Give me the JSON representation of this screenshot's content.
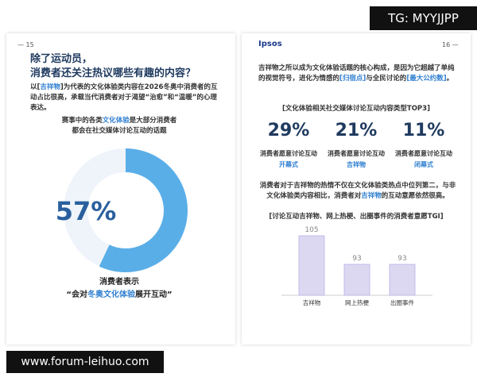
{
  "watermark_top": "TG: MYYJJPP",
  "watermark_bottom": "www.forum-leihuo.com",
  "left_page": {
    "page_number": "15",
    "title": [
      "除了运动员，",
      "消费者还关注热议哪些有趣的内容？"
    ],
    "intro": [
      "以[",
      "吉祥物",
      "]为代表的文化体验类内容在2026冬奥中消费者的互动占比很高，承载当代消费者对于渴望“治愈”和“温暖”的心理表达。"
    ],
    "donut": {
      "caption": [
        "赛事中的各类",
        "文化体验",
        "是大部分消费者",
        "都会在社交媒体讨论互动的话题"
      ],
      "value": 57,
      "value_label": "57%",
      "max": 100,
      "color": "#5aaee8",
      "track_color": "#eef4fa"
    },
    "statement": [
      "消费者表示",
      "“会对",
      "冬奥文化体验",
      "展开互动”"
    ]
  },
  "right_page": {
    "page_number": "16",
    "logo": "Ipsos",
    "intro": [
      "吉祥物之所以成为文化体验话题的核心构成，是因为它超越了单纯的视觉符号，进化为情感的",
      "[归宿点]",
      "与全民讨论的",
      "[最大公约数]",
      "。"
    ],
    "top3": {
      "title": "[文化体验相关社交媒体讨论互动内容类型TOP3]",
      "items": [
        {
          "value": 29,
          "value_label": "29%",
          "label": "消费者愿意讨论互动",
          "name": "开幕式"
        },
        {
          "value": 21,
          "value_label": "21%",
          "label": "消费者愿意讨论互动",
          "name": "吉祥物"
        },
        {
          "value": 11,
          "value_label": "11%",
          "label": "消费者愿意讨论互动",
          "name": "闭幕式"
        }
      ]
    },
    "body": [
      "消费者对于吉祥物的热情不仅在文化体验类热点中位列第二，与非文化体验类内容相比，消费者对",
      "吉祥物",
      "的互动意愿依然很高。"
    ],
    "tgi_chart": {
      "type": "bar",
      "title": "[讨论互动吉祥物、网上热梗、出圈事件的消费者意愿TGI]",
      "categories": [
        "吉祥物",
        "网上热梗",
        "出圈事件"
      ],
      "values": [
        105,
        93,
        93
      ],
      "color": "#dcd8f2",
      "ylim": [
        80,
        110
      ]
    }
  }
}
